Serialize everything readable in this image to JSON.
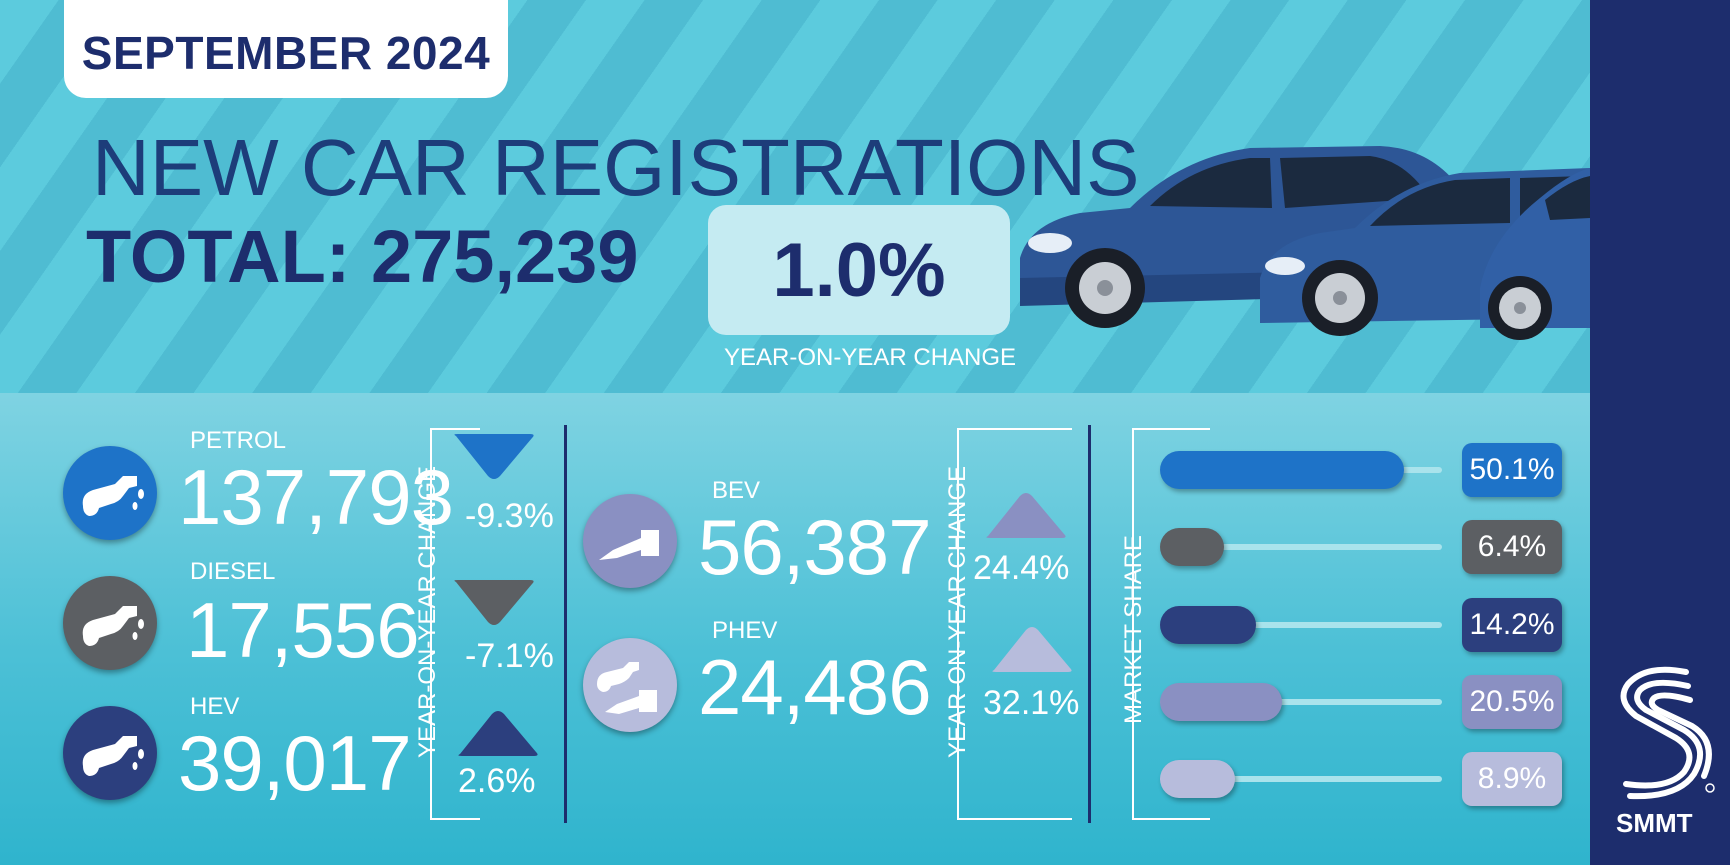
{
  "header": {
    "date": "SEPTEMBER 2024",
    "title": "NEW CAR REGISTRATIONS",
    "total": "TOTAL: 275,239",
    "yoy_value": "1.0%",
    "yoy_label": "YEAR-ON-YEAR CHANGE"
  },
  "left_group": {
    "yoy_label": "YEAR-ON-YEAR CHANGE",
    "items": [
      {
        "label": "PETROL",
        "value": "137,793",
        "change": "-9.3%",
        "direction": "down",
        "color": "#1e73c8"
      },
      {
        "label": "DIESEL",
        "value": "17,556",
        "change": "-7.1%",
        "direction": "down",
        "color": "#5c5f63"
      },
      {
        "label": "HEV",
        "value": "39,017",
        "change": "2.6%",
        "direction": "up",
        "color": "#2c3f7e"
      }
    ]
  },
  "right_group": {
    "yoy_label": "YEAR-ON-YEAR CHANGE",
    "items": [
      {
        "label": "BEV",
        "value": "56,387",
        "change": "24.4%",
        "direction": "up",
        "color": "#8a90c2"
      },
      {
        "label": "PHEV",
        "value": "24,486",
        "change": "32.1%",
        "direction": "up",
        "color": "#b7bcdc"
      }
    ]
  },
  "market_share": {
    "label": "MARKET SHARE",
    "items": [
      {
        "value": "50.1%",
        "share": 50.1,
        "color": "#1e73c8"
      },
      {
        "value": "6.4%",
        "share": 6.4,
        "color": "#5c5f63"
      },
      {
        "value": "14.2%",
        "share": 14.2,
        "color": "#2c3f7e"
      },
      {
        "value": "20.5%",
        "share": 20.5,
        "color": "#8a90c2"
      },
      {
        "value": "8.9%",
        "share": 8.9,
        "color": "#b7bcdc"
      }
    ]
  },
  "brand": {
    "name": "SMMT"
  }
}
